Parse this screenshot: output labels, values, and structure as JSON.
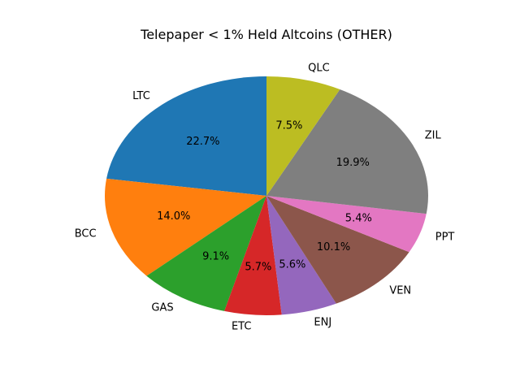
{
  "chart_data": {
    "type": "pie",
    "title": "Telepaper < 1% Held Altcoins (OTHER)",
    "start_angle_deg": 90,
    "direction": "counterclockwise",
    "slices": [
      {
        "label": "LTC",
        "value": 22.7,
        "pct_label": "22.7%",
        "color": "#1f77b4"
      },
      {
        "label": "BCC",
        "value": 14.0,
        "pct_label": "14.0%",
        "color": "#ff7f0e"
      },
      {
        "label": "GAS",
        "value": 9.1,
        "pct_label": "9.1%",
        "color": "#2ca02c"
      },
      {
        "label": "ETC",
        "value": 5.7,
        "pct_label": "5.7%",
        "color": "#d62728"
      },
      {
        "label": "ENJ",
        "value": 5.6,
        "pct_label": "5.6%",
        "color": "#9467bd"
      },
      {
        "label": "VEN",
        "value": 10.1,
        "pct_label": "10.1%",
        "color": "#8c564b"
      },
      {
        "label": "PPT",
        "value": 5.4,
        "pct_label": "5.4%",
        "color": "#e377c2"
      },
      {
        "label": "ZIL",
        "value": 19.9,
        "pct_label": "19.9%",
        "color": "#7f7f7f"
      },
      {
        "label": "QLC",
        "value": 7.5,
        "pct_label": "7.5%",
        "color": "#bcbd22"
      }
    ]
  }
}
